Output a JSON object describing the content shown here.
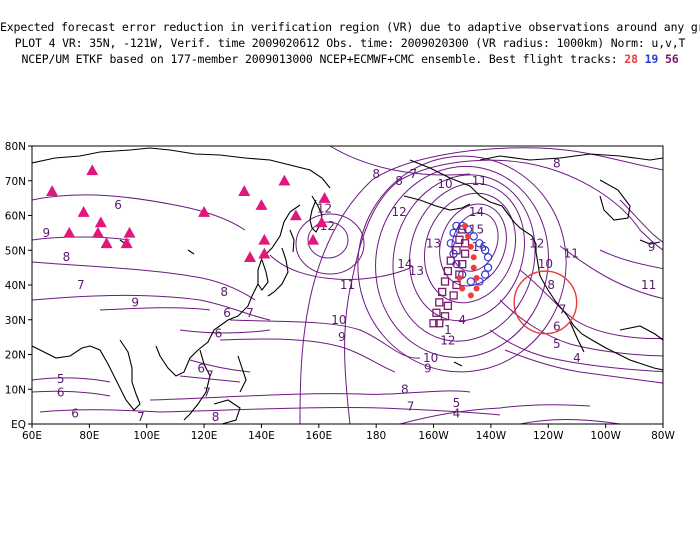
{
  "header": {
    "line1": "Expected forecast error reduction in verification region (VR) due to adaptive observations around any grid point.",
    "line2": "PLOT 4 VR: 35N, -121W, Verif. time 2009020612 Obs. time: 2009020300 (VR radius: 1000km) Norm: u,v,T",
    "line3_prefix": "NCEP/UM ETKF based on 177-member 2009013000 NCEP+ECMWF+CMC ensemble. Best flight tracks:",
    "track_a": "28",
    "track_b": "19",
    "track_c": "56"
  },
  "colors": {
    "track_a": "#f03c3c",
    "track_b": "#2a3cd6",
    "track_c": "#7a1a6a",
    "contour": "#6e1a82",
    "coast": "#000000",
    "triangle": "#e0187c",
    "vr_circle": "#ee3a3a"
  },
  "axes": {
    "lon_labels": [
      "60E",
      "80E",
      "100E",
      "120E",
      "140E",
      "160E",
      "180",
      "160W",
      "140W",
      "120W",
      "100W",
      "80W"
    ],
    "lat_labels": [
      "EQ",
      "10N",
      "20N",
      "30N",
      "40N",
      "50N",
      "60N",
      "70N",
      "80N"
    ]
  },
  "verification_region": {
    "lat": 35,
    "lon": -121,
    "radius_km": 1000
  },
  "contour_labels": [
    {
      "text": "7",
      "lon": -167,
      "lat": 72
    },
    {
      "text": "8",
      "lon": -172,
      "lat": 70
    },
    {
      "text": "10",
      "lon": -156,
      "lat": 69
    },
    {
      "text": "11",
      "lon": -144,
      "lat": 70
    },
    {
      "text": "8",
      "lon": -117,
      "lat": 75
    },
    {
      "text": "12",
      "lon": -172,
      "lat": 61
    },
    {
      "text": "14",
      "lon": -145,
      "lat": 61
    },
    {
      "text": "15",
      "lon": -145,
      "lat": 56
    },
    {
      "text": "16",
      "lon": -144,
      "lat": 51
    },
    {
      "text": "12",
      "lon": -124,
      "lat": 52
    },
    {
      "text": "11",
      "lon": -112,
      "lat": 49
    },
    {
      "text": "10",
      "lon": -121,
      "lat": 46
    },
    {
      "text": "9",
      "lon": -84,
      "lat": 51
    },
    {
      "text": "11",
      "lon": -85,
      "lat": 40
    },
    {
      "text": "14",
      "lon": -170,
      "lat": 46
    },
    {
      "text": "13",
      "lon": -166,
      "lat": 44
    },
    {
      "text": "13",
      "lon": -160,
      "lat": 52
    },
    {
      "text": "11",
      "lon": -190,
      "lat": 40
    },
    {
      "text": "12",
      "lon": 162,
      "lat": 62
    },
    {
      "text": "12",
      "lon": 163,
      "lat": 57
    },
    {
      "text": "10",
      "lon": -193,
      "lat": 30
    },
    {
      "text": "9",
      "lon": -192,
      "lat": 25
    },
    {
      "text": "10",
      "lon": -161,
      "lat": 19
    },
    {
      "text": "9",
      "lon": -162,
      "lat": 16
    },
    {
      "text": "12",
      "lon": -155,
      "lat": 24
    },
    {
      "text": "1",
      "lon": -155,
      "lat": 27
    },
    {
      "text": "4",
      "lon": -150,
      "lat": 30
    },
    {
      "text": "7",
      "lon": -115,
      "lat": 33
    },
    {
      "text": "6",
      "lon": -117,
      "lat": 28
    },
    {
      "text": "5",
      "lon": -117,
      "lat": 23
    },
    {
      "text": "8",
      "lon": -119,
      "lat": 40
    },
    {
      "text": "4",
      "lon": -110,
      "lat": 19
    },
    {
      "text": "8",
      "lon": -170,
      "lat": 10
    },
    {
      "text": "7",
      "lon": -168,
      "lat": 5
    },
    {
      "text": "5",
      "lon": -152,
      "lat": 6
    },
    {
      "text": "4",
      "lon": -152,
      "lat": 3
    },
    {
      "text": "6",
      "lon": 90,
      "lat": 63
    },
    {
      "text": "8",
      "lon": 72,
      "lat": 48
    },
    {
      "text": "9",
      "lon": 65,
      "lat": 55
    },
    {
      "text": "7",
      "lon": 77,
      "lat": 40
    },
    {
      "text": "9",
      "lon": 96,
      "lat": 35
    },
    {
      "text": "8",
      "lon": 127,
      "lat": 38
    },
    {
      "text": "6",
      "lon": 128,
      "lat": 32
    },
    {
      "text": "7",
      "lon": 136,
      "lat": 32
    },
    {
      "text": "6",
      "lon": 125,
      "lat": 26
    },
    {
      "text": "6",
      "lon": 119,
      "lat": 16
    },
    {
      "text": "7",
      "lon": 122,
      "lat": 14
    },
    {
      "text": "5",
      "lon": 70,
      "lat": 13
    },
    {
      "text": "6",
      "lon": 70,
      "lat": 9
    },
    {
      "text": "6",
      "lon": 75,
      "lat": 3
    },
    {
      "text": "7",
      "lon": 98,
      "lat": 2
    },
    {
      "text": "7",
      "lon": 121,
      "lat": 9
    },
    {
      "text": "8",
      "lon": 124,
      "lat": 2
    },
    {
      "text": "8",
      "lon": -180,
      "lat": 72
    }
  ],
  "triangles": [
    {
      "lon": 67,
      "lat": 67
    },
    {
      "lon": 81,
      "lat": 73
    },
    {
      "lon": 78,
      "lat": 61
    },
    {
      "lon": 84,
      "lat": 58
    },
    {
      "lon": 73,
      "lat": 55
    },
    {
      "lon": 83,
      "lat": 55
    },
    {
      "lon": 86,
      "lat": 52
    },
    {
      "lon": 94,
      "lat": 55
    },
    {
      "lon": 93,
      "lat": 52
    },
    {
      "lon": 120,
      "lat": 61
    },
    {
      "lon": 134,
      "lat": 67
    },
    {
      "lon": 148,
      "lat": 70
    },
    {
      "lon": 140,
      "lat": 63
    },
    {
      "lon": 152,
      "lat": 60
    },
    {
      "lon": 162,
      "lat": 65
    },
    {
      "lon": 161,
      "lat": 58
    },
    {
      "lon": 141,
      "lat": 53
    },
    {
      "lon": 136,
      "lat": 48
    },
    {
      "lon": 141,
      "lat": 49
    },
    {
      "lon": 158,
      "lat": 53
    }
  ],
  "tracks": {
    "track_a_points": [
      {
        "lon": -149,
        "lat": 57
      },
      {
        "lon": -148,
        "lat": 54
      },
      {
        "lon": -147,
        "lat": 51
      },
      {
        "lon": -146,
        "lat": 48
      },
      {
        "lon": -146,
        "lat": 45
      },
      {
        "lon": -145,
        "lat": 42
      },
      {
        "lon": -145,
        "lat": 39
      },
      {
        "lon": -147,
        "lat": 37
      },
      {
        "lon": -150,
        "lat": 39
      },
      {
        "lon": -151,
        "lat": 42
      }
    ],
    "track_b_points": [
      {
        "lon": -152,
        "lat": 57
      },
      {
        "lon": -150,
        "lat": 57
      },
      {
        "lon": -148,
        "lat": 56
      },
      {
        "lon": -146,
        "lat": 54
      },
      {
        "lon": -144,
        "lat": 52
      },
      {
        "lon": -142,
        "lat": 50
      },
      {
        "lon": -141,
        "lat": 48
      },
      {
        "lon": -141,
        "lat": 45
      },
      {
        "lon": -142,
        "lat": 43
      },
      {
        "lon": -144,
        "lat": 41
      },
      {
        "lon": -147,
        "lat": 41
      },
      {
        "lon": -150,
        "lat": 43
      },
      {
        "lon": -152,
        "lat": 46
      },
      {
        "lon": -153,
        "lat": 49
      },
      {
        "lon": -154,
        "lat": 52
      },
      {
        "lon": -153,
        "lat": 55
      }
    ],
    "track_c_points": [
      {
        "lon": -150,
        "lat": 56
      },
      {
        "lon": -151,
        "lat": 53
      },
      {
        "lon": -152,
        "lat": 50
      },
      {
        "lon": -154,
        "lat": 47
      },
      {
        "lon": -155,
        "lat": 44
      },
      {
        "lon": -156,
        "lat": 41
      },
      {
        "lon": -157,
        "lat": 38
      },
      {
        "lon": -158,
        "lat": 35
      },
      {
        "lon": -159,
        "lat": 32
      },
      {
        "lon": -160,
        "lat": 29
      },
      {
        "lon": -158,
        "lat": 29
      },
      {
        "lon": -156,
        "lat": 31
      },
      {
        "lon": -155,
        "lat": 34
      },
      {
        "lon": -153,
        "lat": 37
      },
      {
        "lon": -152,
        "lat": 40
      },
      {
        "lon": -151,
        "lat": 43
      },
      {
        "lon": -150,
        "lat": 46
      },
      {
        "lon": -149,
        "lat": 49
      },
      {
        "lon": -149,
        "lat": 52
      }
    ]
  }
}
